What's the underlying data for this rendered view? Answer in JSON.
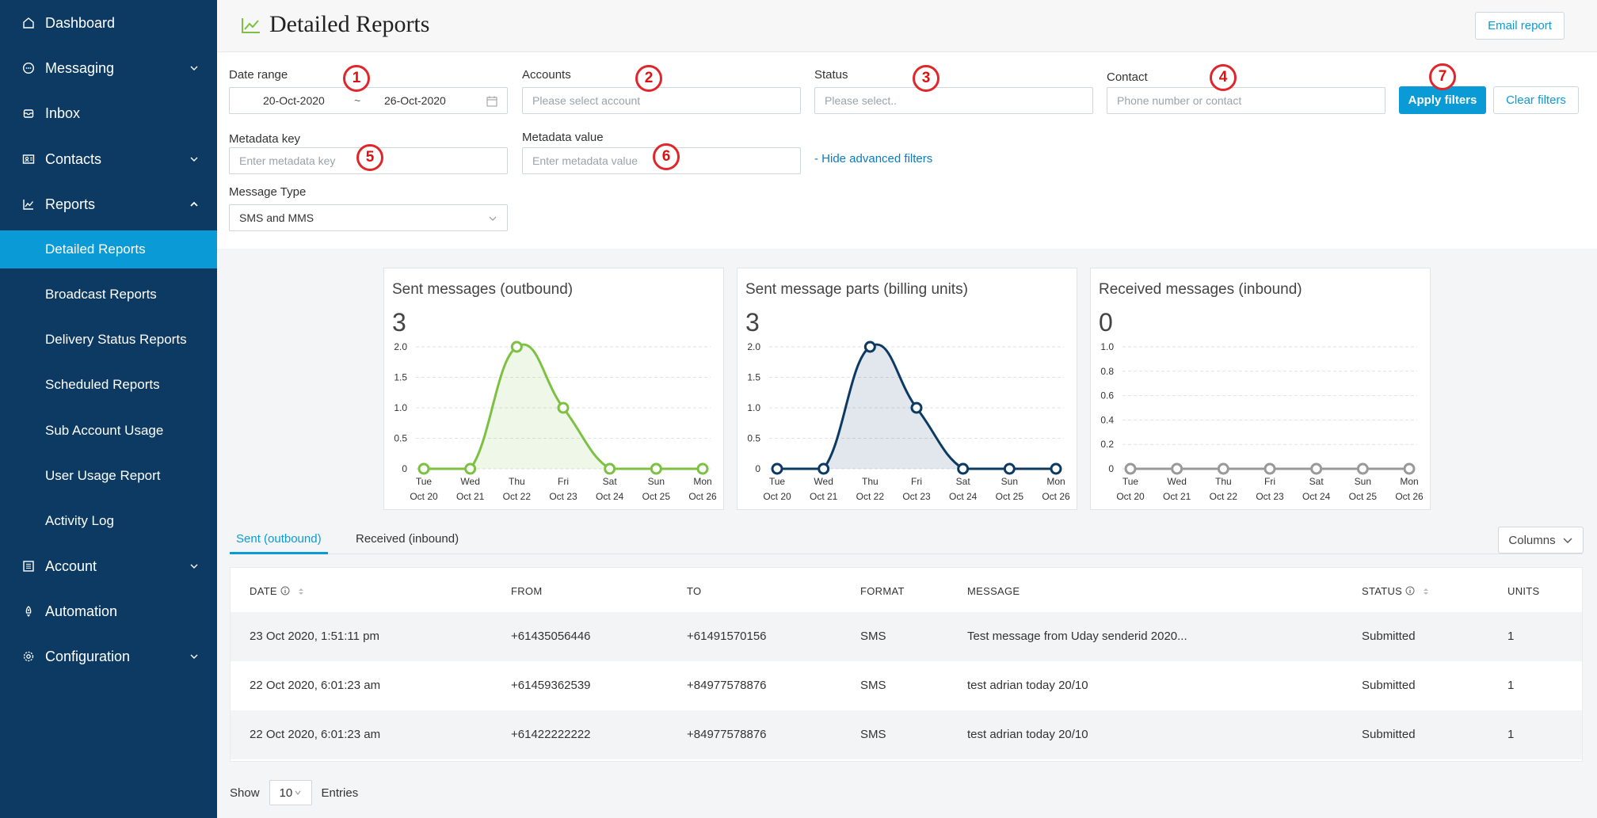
{
  "sidebar": {
    "items": [
      {
        "label": "Dashboard",
        "icon": "home-icon"
      },
      {
        "label": "Messaging",
        "icon": "chat-icon"
      },
      {
        "label": "Inbox",
        "icon": "inbox-icon"
      },
      {
        "label": "Contacts",
        "icon": "contacts-icon"
      },
      {
        "label": "Reports",
        "icon": "chart-icon"
      },
      {
        "label": "Detailed Reports"
      },
      {
        "label": "Broadcast Reports"
      },
      {
        "label": "Delivery Status Reports"
      },
      {
        "label": "Scheduled Reports"
      },
      {
        "label": "Sub Account Usage"
      },
      {
        "label": "User Usage Report"
      },
      {
        "label": "Activity Log"
      },
      {
        "label": "Account",
        "icon": "account-icon"
      },
      {
        "label": "Automation",
        "icon": "automation-icon"
      },
      {
        "label": "Configuration",
        "icon": "gear-icon"
      }
    ]
  },
  "header": {
    "title": "Detailed Reports",
    "email_report": "Email report"
  },
  "filters": {
    "date_range_label": "Date range",
    "date_from": "20-Oct-2020",
    "date_sep": "~",
    "date_to": "26-Oct-2020",
    "accounts_label": "Accounts",
    "accounts_placeholder": "Please select account",
    "status_label": "Status",
    "status_placeholder": "Please select..",
    "contact_label": "Contact",
    "contact_placeholder": "Phone number or contact",
    "apply": "Apply filters",
    "clear": "Clear filters",
    "metadata_key_label": "Metadata key",
    "metadata_key_placeholder": "Enter metadata key",
    "metadata_value_label": "Metadata value",
    "metadata_value_placeholder": "Enter metadata value",
    "hide_advanced": "- Hide advanced filters",
    "message_type_label": "Message Type",
    "message_type_value": "SMS and MMS"
  },
  "markers": [
    "1",
    "2",
    "3",
    "4",
    "5",
    "6",
    "7"
  ],
  "chart_data": [
    {
      "type": "area",
      "title": "Sent messages (outbound)",
      "total": "3",
      "x": [
        "Tue Oct 20",
        "Wed Oct 21",
        "Thu Oct 22",
        "Fri Oct 23",
        "Sat Oct 24",
        "Sun Oct 25",
        "Mon Oct 26"
      ],
      "x_day": [
        "Tue",
        "Wed",
        "Thu",
        "Fri",
        "Sat",
        "Sun",
        "Mon"
      ],
      "x_date": [
        "Oct 20",
        "Oct 21",
        "Oct 22",
        "Oct 23",
        "Oct 24",
        "Oct 25",
        "Oct 26"
      ],
      "values": [
        0,
        0,
        2,
        1,
        0,
        0,
        0
      ],
      "yticks": [
        "0",
        "0.5",
        "1.0",
        "1.5",
        "2.0"
      ],
      "ylim": [
        0,
        2
      ],
      "color": "#7cc142"
    },
    {
      "type": "area",
      "title": "Sent message parts (billing units)",
      "total": "3",
      "x": [
        "Tue Oct 20",
        "Wed Oct 21",
        "Thu Oct 22",
        "Fri Oct 23",
        "Sat Oct 24",
        "Sun Oct 25",
        "Mon Oct 26"
      ],
      "x_day": [
        "Tue",
        "Wed",
        "Thu",
        "Fri",
        "Sat",
        "Sun",
        "Mon"
      ],
      "x_date": [
        "Oct 20",
        "Oct 21",
        "Oct 22",
        "Oct 23",
        "Oct 24",
        "Oct 25",
        "Oct 26"
      ],
      "values": [
        0,
        0,
        2,
        1,
        0,
        0,
        0
      ],
      "yticks": [
        "0",
        "0.5",
        "1.0",
        "1.5",
        "2.0"
      ],
      "ylim": [
        0,
        2
      ],
      "color": "#0c3a63"
    },
    {
      "type": "line",
      "title": "Received messages (inbound)",
      "total": "0",
      "x": [
        "Tue Oct 20",
        "Wed Oct 21",
        "Thu Oct 22",
        "Fri Oct 23",
        "Sat Oct 24",
        "Sun Oct 25",
        "Mon Oct 26"
      ],
      "x_day": [
        "Tue",
        "Wed",
        "Thu",
        "Fri",
        "Sat",
        "Sun",
        "Mon"
      ],
      "x_date": [
        "Oct 20",
        "Oct 21",
        "Oct 22",
        "Oct 23",
        "Oct 24",
        "Oct 25",
        "Oct 26"
      ],
      "values": [
        0,
        0,
        0,
        0,
        0,
        0,
        0
      ],
      "yticks": [
        "0",
        "0.2",
        "0.4",
        "0.6",
        "0.8",
        "1.0"
      ],
      "ylim": [
        0,
        1
      ],
      "color": "#999999"
    }
  ],
  "tabs": {
    "sent": "Sent (outbound)",
    "received": "Received (inbound)",
    "columns": "Columns"
  },
  "table": {
    "headers": [
      "DATE",
      "FROM",
      "TO",
      "FORMAT",
      "MESSAGE",
      "STATUS",
      "UNITS"
    ],
    "rows": [
      [
        "23 Oct 2020, 1:51:11 pm",
        "+61435056446",
        "+61491570156",
        "SMS",
        "Test message from Uday senderid 2020...",
        "Submitted",
        "1"
      ],
      [
        "22 Oct 2020, 6:01:23 am",
        "+61459362539",
        "+84977578876",
        "SMS",
        "test adrian today 20/10",
        "Submitted",
        "1"
      ],
      [
        "22 Oct 2020, 6:01:23 am",
        "+61422222222",
        "+84977578876",
        "SMS",
        "test adrian today 20/10",
        "Submitted",
        "1"
      ]
    ]
  },
  "footer": {
    "show": "Show",
    "page_size": "10",
    "entries": "Entries"
  }
}
